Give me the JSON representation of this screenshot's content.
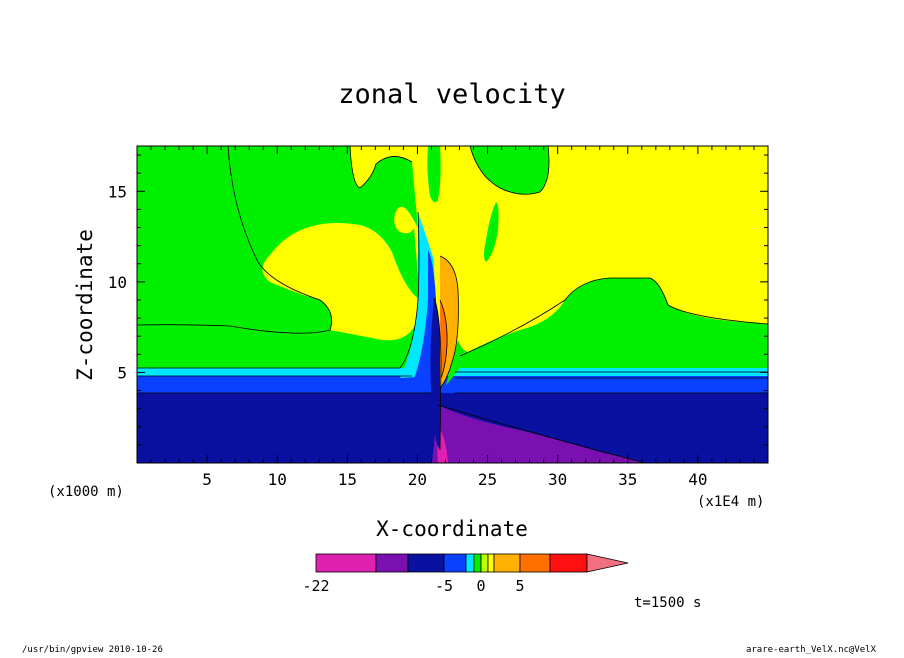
{
  "chart_data": {
    "type": "contour",
    "title": "zonal velocity",
    "xlabel": "X-coordinate",
    "ylabel": "Z-coordinate",
    "x_unit_note": "(x1E4 m)",
    "y_unit_note": "(x1000 m)",
    "xlim": [
      0,
      45
    ],
    "ylim": [
      0,
      17.5
    ],
    "x_ticks": [
      5,
      10,
      15,
      20,
      25,
      30,
      35,
      40
    ],
    "y_ticks": [
      5,
      10,
      15
    ],
    "colorbar": {
      "levels": [
        -22,
        -5,
        0,
        5
      ],
      "labels": [
        "-22",
        "-5",
        "0",
        "5"
      ],
      "colors": [
        "#e020b0",
        "#7a10b0",
        "#0a10a0",
        "#0a40ff",
        "#00e8ff",
        "#00f000",
        "#c0ff00",
        "#ffff00",
        "#ffb000",
        "#ff7000",
        "#ff1010",
        "#f07080"
      ]
    },
    "time_label": "t=1500 s"
  },
  "footer": {
    "left": "/usr/bin/gpview  2010-10-26",
    "right": "arare-earth_VelX.nc@VelX"
  }
}
